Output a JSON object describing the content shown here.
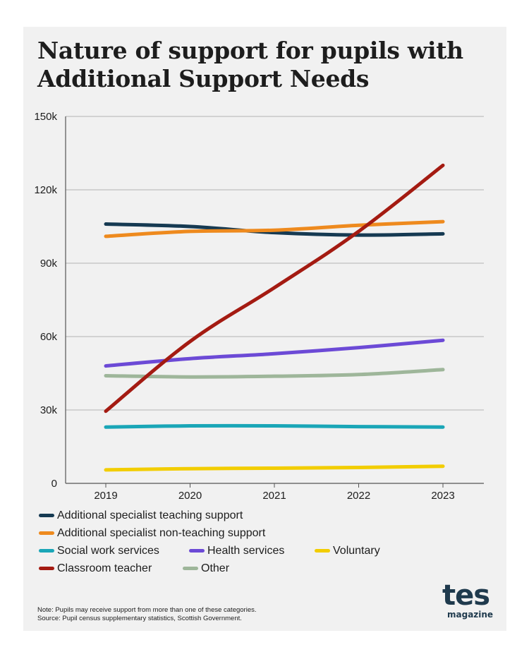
{
  "title": "Nature of support for pupils with Additional Support Needs",
  "chart_data": {
    "type": "line",
    "x": [
      "2019",
      "2020",
      "2021",
      "2022",
      "2023"
    ],
    "ylim": [
      0,
      150000
    ],
    "yticks": [
      0,
      30000,
      60000,
      90000,
      120000,
      150000
    ],
    "ytick_labels": [
      "0",
      "30k",
      "60k",
      "90k",
      "120k",
      "150k"
    ],
    "grid": "horizontal",
    "legend_position": "bottom",
    "series": [
      {
        "name": "Additional specialist teaching support",
        "color": "#163a52",
        "values": [
          106000,
          105000,
          102500,
          101500,
          102000
        ]
      },
      {
        "name": "Additional specialist non-teaching support",
        "color": "#ee8a1e",
        "values": [
          101000,
          103000,
          103500,
          105500,
          107000
        ]
      },
      {
        "name": "Social work services",
        "color": "#1aa6b7",
        "values": [
          23000,
          23500,
          23500,
          23200,
          23000
        ]
      },
      {
        "name": "Health services",
        "color": "#6c4ad6",
        "values": [
          48000,
          51000,
          53000,
          55500,
          58500
        ]
      },
      {
        "name": "Voluntary",
        "color": "#f2cd00",
        "values": [
          5500,
          6000,
          6200,
          6500,
          7000
        ]
      },
      {
        "name": "Classroom teacher",
        "color": "#a41b12",
        "values": [
          29500,
          58000,
          80000,
          103000,
          130000
        ]
      },
      {
        "name": "Other",
        "color": "#9eb69a",
        "values": [
          44000,
          43500,
          43800,
          44500,
          46500
        ]
      }
    ]
  },
  "notes": {
    "note": "Note:  Pupils may receive support from more than one of these categories.",
    "source": "Source: Pupil census supplementary statistics, Scottish Government."
  },
  "logo": {
    "top": "tes",
    "bottom": "magazine"
  }
}
